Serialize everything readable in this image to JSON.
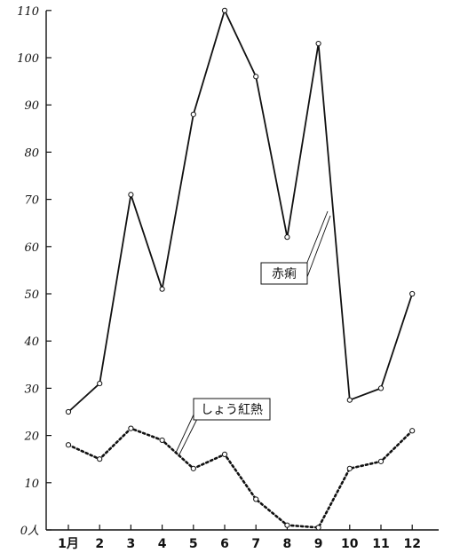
{
  "chart_data": {
    "type": "line",
    "categories": [
      "1月",
      "2",
      "3",
      "4",
      "5",
      "6",
      "7",
      "8",
      "9",
      "10",
      "11",
      "12"
    ],
    "y_ticks": [
      "0人",
      "10",
      "20",
      "30",
      "40",
      "50",
      "60",
      "70",
      "80",
      "90",
      "100",
      "110"
    ],
    "ylim": [
      0,
      110
    ],
    "grid": false,
    "series": [
      {
        "name": "赤痢",
        "style": "solid",
        "color": "#111111",
        "values": [
          25,
          31,
          71,
          51,
          88,
          110,
          96,
          62,
          103,
          27.5,
          30,
          50
        ]
      },
      {
        "name": "しょう紅熱",
        "style": "dotted",
        "color": "#111111",
        "values": [
          18,
          15,
          21.5,
          19,
          13,
          16,
          6.5,
          1,
          0.5,
          13,
          14.5,
          21
        ]
      }
    ]
  }
}
